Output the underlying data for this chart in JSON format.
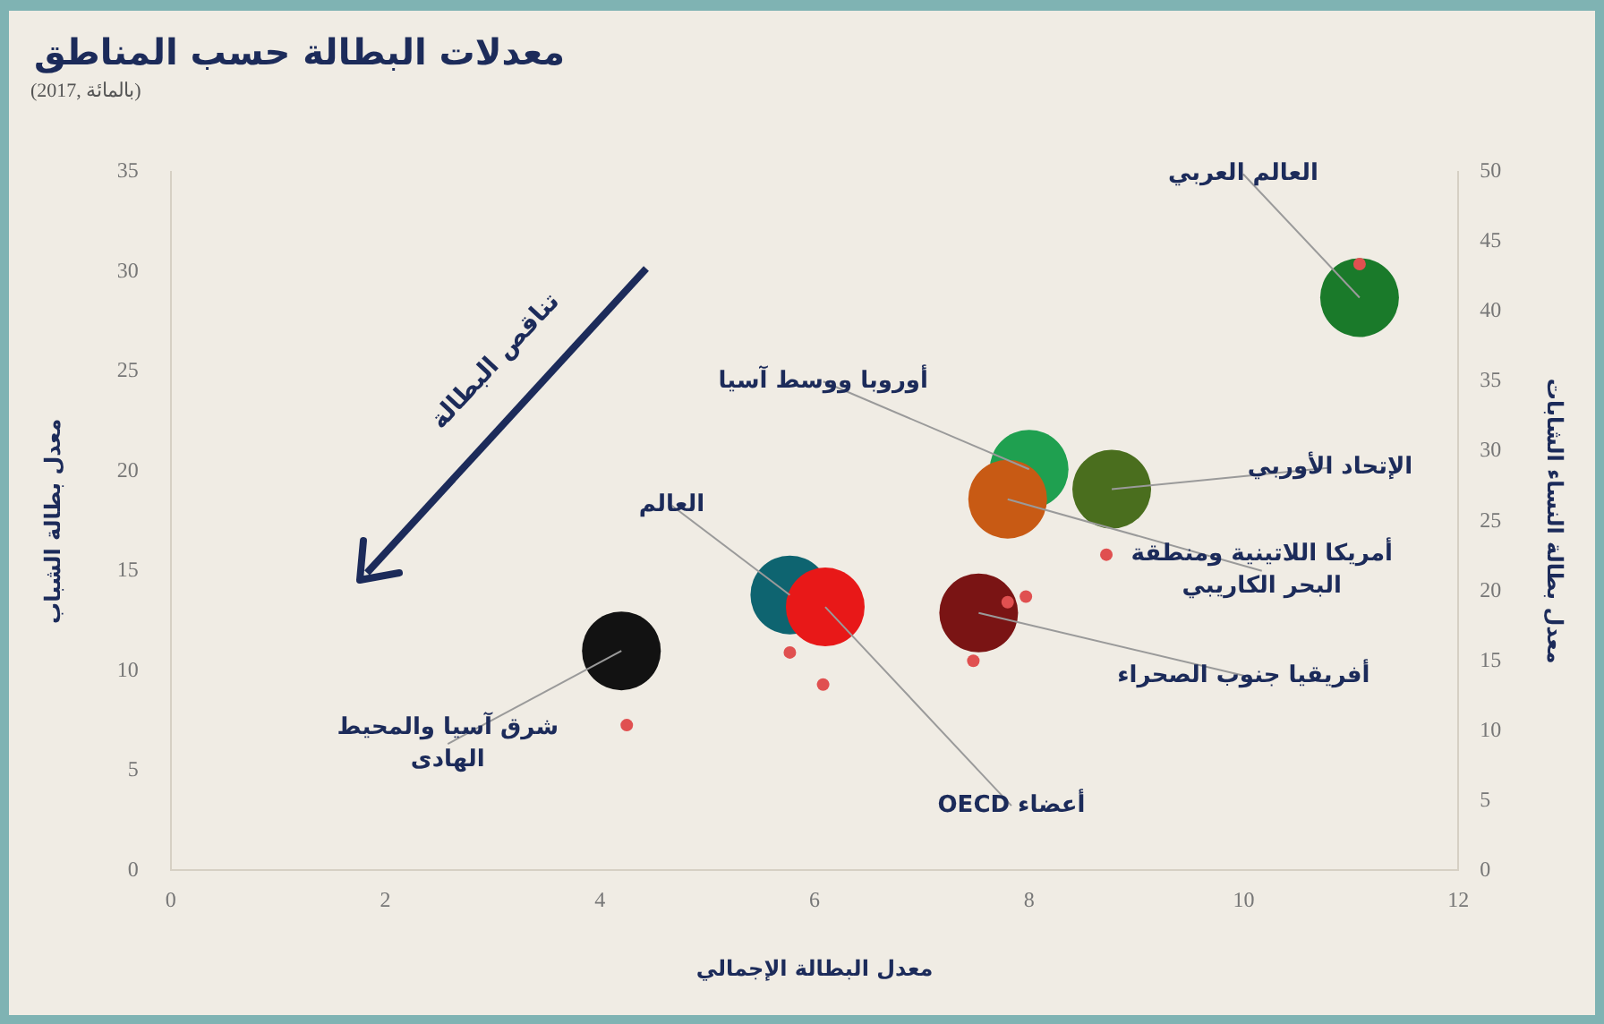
{
  "chart_data": {
    "type": "scatter",
    "title": "معدلات البطالة حسب المناطق",
    "subtitle": "(2017, بالمائة)",
    "xlabel": "معدل البطالة الإجمالي",
    "ylabel": "معدل بطالة الشباب",
    "y2label": "معدل بطالة النساء الشابات",
    "xlim": [
      0,
      12
    ],
    "xticks": [
      0,
      2,
      4,
      6,
      8,
      10,
      12
    ],
    "ylim": [
      0,
      35
    ],
    "yticks": [
      0,
      5,
      10,
      15,
      20,
      25,
      30,
      35
    ],
    "y2lim": [
      0,
      50
    ],
    "y2ticks": [
      0,
      5,
      10,
      15,
      20,
      25,
      30,
      35,
      40,
      45,
      50
    ],
    "grid": false,
    "legend": false,
    "marker": "circle",
    "series": [
      {
        "axis": "y",
        "x": [
          11.08,
          8.0,
          8.77,
          7.8,
          7.53,
          5.77,
          4.2,
          6.1
        ],
        "values": [
          28.7,
          20.1,
          19.1,
          18.6,
          12.9,
          13.8,
          11.0,
          13.2
        ],
        "colors": [
          "#1a7a2a",
          "#1fa050",
          "#4a6e1e",
          "#c85a14",
          "#7a1414",
          "#0e6470",
          "#121212",
          "#e81818"
        ]
      },
      {
        "axis": "y2",
        "x": [
          11.08,
          7.97,
          8.72,
          7.8,
          7.48,
          5.77,
          4.25,
          6.08
        ],
        "values": [
          43.4,
          19.6,
          22.6,
          19.2,
          15.0,
          15.6,
          10.4,
          13.3
        ],
        "color": "#e05050"
      }
    ],
    "annotations": [
      {
        "text": "العالم العربي",
        "x": 11.08,
        "y": 28.7
      },
      {
        "text": "أوروبا ووسط آسيا",
        "x": 8.0,
        "y": 20.1
      },
      {
        "text": "الإتحاد الأوربي",
        "x": 8.77,
        "y": 19.1
      },
      {
        "text": "أمريكا اللاتينية ومنطقة البحر الكاريبي",
        "x": 7.8,
        "y": 18.6
      },
      {
        "text": "أفريقيا جنوب الصحراء",
        "x": 7.53,
        "y": 12.9
      },
      {
        "text": "العالم",
        "x": 5.77,
        "y": 13.8
      },
      {
        "text": "شرق آسيا والمحيط الهادى",
        "x": 4.2,
        "y": 11.0
      },
      {
        "text": "أعضاء OECD",
        "x": 6.1,
        "y": 13.2
      },
      "تناقص البطالة"
    ]
  }
}
